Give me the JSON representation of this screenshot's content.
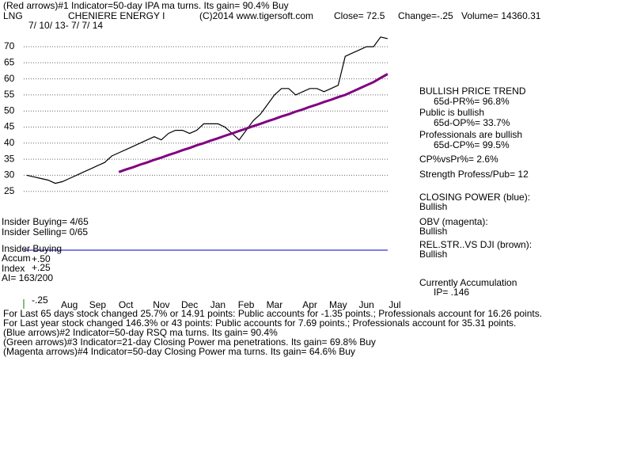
{
  "text": {
    "top_line": "(Red arrows)#1 Indicator=50-day IPA ma turns. Its gain= 90.4% Buy",
    "ticker": "LNG",
    "company": "CHENIERE ENERGY I",
    "copyright": "(C)2014 www.tigersoft.com",
    "close": "Close=  72.5",
    "change": "Change=-.25",
    "volume": "Volume= 14360.31",
    "date_range": "7/ 10/ 13- 7/ 7/ 14",
    "panel": [
      "BULLISH PRICE TREND",
      "65d-PR%= 96.8%",
      "Public is bullish",
      "65d-OP%= 33.7%",
      "Professionals are bullish",
      "65d-CP%= 99.5%",
      "CP%vsPr%=  2.6%",
      "Strength Profess/Pub= 12",
      "CLOSING POWER (blue):",
      "Bullish",
      "OBV (magenta):",
      "Bullish",
      "REL.STR..VS DJI (brown):",
      "Bullish",
      "Currently Accumulation",
      "IP=  .146"
    ],
    "insider": [
      "Insider Buying= 4/65",
      "Insider Selling= 0/65",
      "Insider Buying",
      "+.50",
      "Accum",
      "+.25",
      "Index",
      "AI= 163/200",
      "-.25"
    ],
    "notes": [
      "For Last 65 days stock changed  25.7% or  14.91 points:  Public accounts for -1.35 points.;  Professionals account for  16.26 points.",
      "For Last year stock changed  146.3% or  43 points:  Public accounts for  7.69 points.;  Professionals account for  35.31 points.",
      "(Blue arrows)#2 Indicator=50-day RSQ ma turns. Its gain= 90.4%",
      "(Green arrows)#3 Indicator=21-day Closing Power ma penetrations. Its gain= 69.8% Buy",
      "(Magenta arrows)#4 Indicator=50-day Closing Power ma turns. Its gain= 64.6% Buy"
    ]
  },
  "chart_data": {
    "type": "line",
    "categories": [
      null,
      null,
      null,
      null,
      null,
      null,
      "Aug",
      null,
      null,
      null,
      "Sep",
      null,
      null,
      null,
      "Oct",
      null,
      null,
      null,
      null,
      "Nov",
      null,
      null,
      null,
      "Dec",
      null,
      null,
      null,
      "Jan",
      null,
      null,
      null,
      "Feb",
      null,
      null,
      null,
      "Mar",
      null,
      null,
      null,
      null,
      "Apr",
      null,
      null,
      null,
      "May",
      null,
      null,
      null,
      "Jun",
      null,
      null,
      null,
      "Jul"
    ],
    "series": [
      {
        "color": "#000000",
        "values": [
          30,
          29.5,
          29,
          28.5,
          27.5,
          28,
          29,
          30,
          31,
          32,
          33,
          34,
          36,
          37,
          38,
          39,
          40,
          41,
          42,
          41,
          43,
          44,
          44,
          43,
          44,
          46,
          46,
          46,
          45,
          43,
          41,
          44,
          47,
          49,
          52,
          55,
          57,
          57,
          55,
          56,
          57,
          57,
          56,
          57,
          58,
          67,
          68,
          69,
          70,
          70,
          73,
          72.5,
          null
        ]
      },
      {
        "color": "#800080",
        "values": [
          null,
          null,
          null,
          null,
          null,
          null,
          null,
          null,
          null,
          null,
          null,
          null,
          null,
          31,
          31.8,
          32.5,
          33.3,
          34,
          34.8,
          35.5,
          36.3,
          37,
          37.8,
          38.5,
          39.3,
          40,
          40.8,
          41.5,
          42.3,
          43,
          43.8,
          44.5,
          45.3,
          46,
          46.8,
          47.5,
          48.3,
          49,
          49.8,
          50.5,
          51.3,
          52,
          52.8,
          53.5,
          54.3,
          55,
          56,
          57,
          58,
          59,
          60.3,
          61.5,
          null
        ]
      }
    ],
    "ylim": [
      20,
      75
    ],
    "yticks": [
      25,
      30,
      35,
      40,
      45,
      50,
      55,
      60,
      65,
      70
    ],
    "grid": true
  }
}
